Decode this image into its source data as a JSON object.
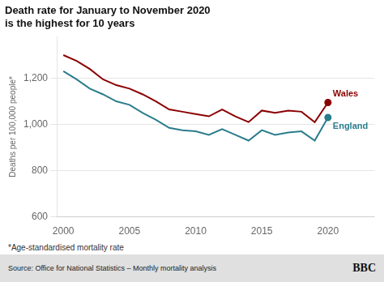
{
  "chart_data": {
    "type": "line",
    "title": [
      "Death rate for January to November 2020",
      "is the highest for 10 years"
    ],
    "ylabel": "Deaths per 100,000 people*",
    "annotations": [
      "*Age-standardised mortality rate",
      "Source: Office for National Statistics – Monthly mortality analysis",
      "BBC"
    ],
    "x": [
      2000,
      2001,
      2002,
      2003,
      2004,
      2005,
      2006,
      2007,
      2008,
      2009,
      2010,
      2011,
      2012,
      2013,
      2014,
      2015,
      2016,
      2017,
      2018,
      2019,
      2020
    ],
    "series": [
      {
        "name": "Wales",
        "color": "#8B0000",
        "values": [
          1300,
          1275,
          1240,
          1195,
          1170,
          1155,
          1130,
          1100,
          1065,
          1055,
          1045,
          1035,
          1065,
          1035,
          1010,
          1060,
          1050,
          1060,
          1055,
          1010,
          1095
        ]
      },
      {
        "name": "England",
        "color": "#2A7D8C",
        "values": [
          1230,
          1195,
          1155,
          1130,
          1100,
          1085,
          1050,
          1020,
          985,
          975,
          970,
          955,
          980,
          955,
          930,
          975,
          955,
          965,
          970,
          930,
          1030
        ]
      }
    ],
    "xlim": [
      1999.5,
      2023.5
    ],
    "xticks": [
      2000,
      2005,
      2010,
      2015,
      2020
    ],
    "ylim": [
      600,
      1380
    ],
    "yticks": [
      600,
      800,
      {
        "value": 1000,
        "label": "1,000"
      },
      {
        "value": 1200,
        "label": "1,200"
      }
    ],
    "grid": "y"
  }
}
